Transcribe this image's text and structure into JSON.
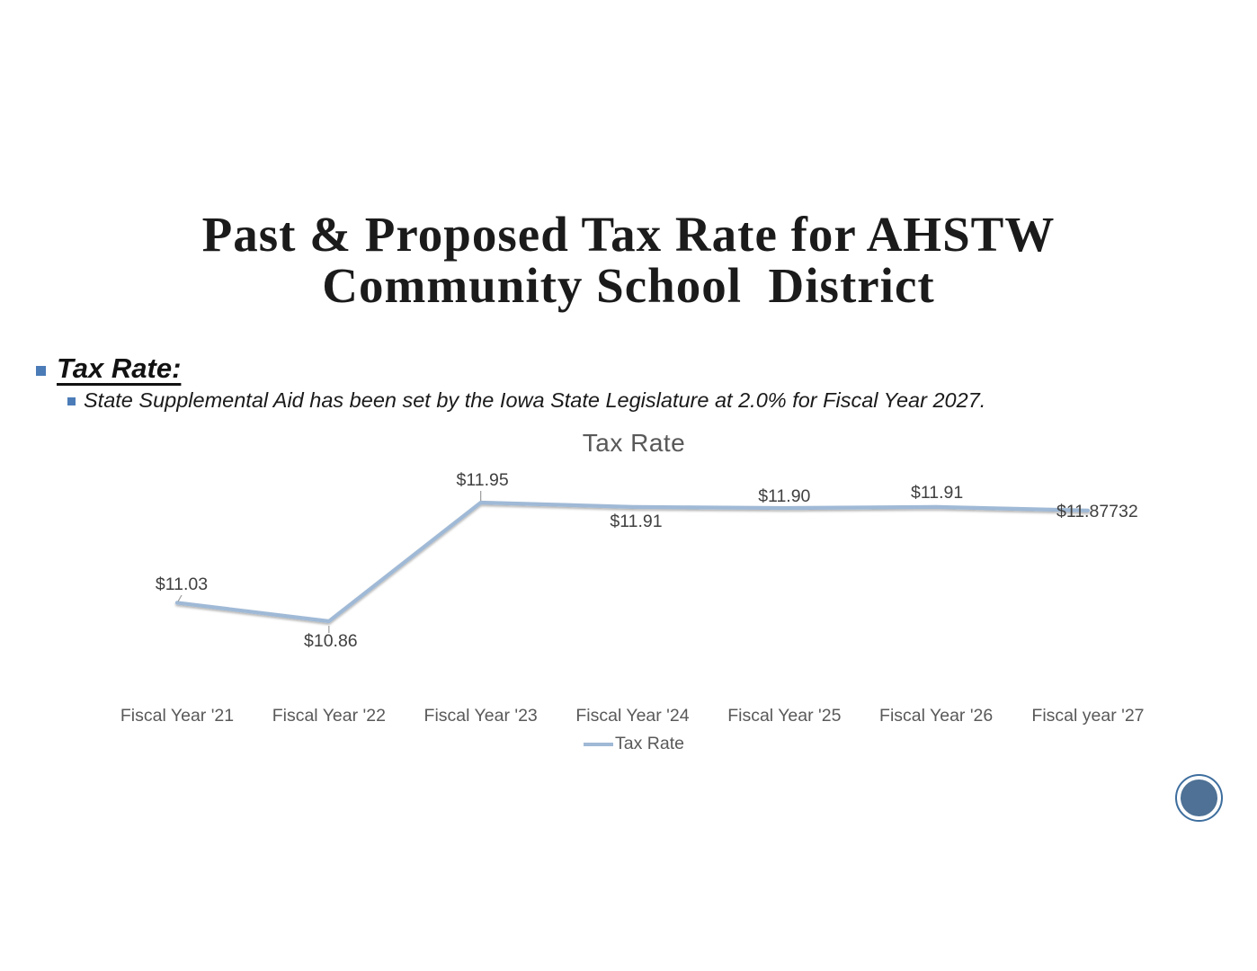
{
  "slide": {
    "title_line1": "Past & Proposed Tax Rate for AHSTW",
    "title_line2": "Community School  District",
    "bullet_color": "#4b7cb8",
    "bullets": [
      {
        "level": 1,
        "text": "Tax Rate:"
      },
      {
        "level": 2,
        "text": "State Supplemental Aid has been set by the Iowa State Legislature at 2.0% for Fiscal Year 2027."
      }
    ]
  },
  "chart_data": {
    "type": "line",
    "title": "Tax Rate",
    "categories": [
      "Fiscal Year '21",
      "Fiscal Year '22",
      "Fiscal Year '23",
      "Fiscal Year '24",
      "Fiscal Year '25",
      "Fiscal Year '26",
      "Fiscal year '27"
    ],
    "series": [
      {
        "name": "Tax Rate",
        "values": [
          11.03,
          10.86,
          11.95,
          11.91,
          11.9,
          11.91,
          11.87732
        ]
      }
    ],
    "data_labels": [
      "$11.03",
      "$10.86",
      "$11.95",
      "$11.91",
      "$11.90",
      "$11.91",
      "$11.87732"
    ],
    "xlabel": "",
    "ylabel": "",
    "ylim": [
      10.7,
      12.1
    ],
    "grid": false,
    "legend": {
      "position": "bottom",
      "entries": [
        "Tax Rate"
      ]
    },
    "line_color": "#9fb9d6",
    "label_color": "#404040",
    "axis_text_color": "#595959",
    "leader_line_color": "#9a9a9a"
  },
  "page_badge": {
    "fill": "#4e7195",
    "ring": "#3e6e9e"
  }
}
